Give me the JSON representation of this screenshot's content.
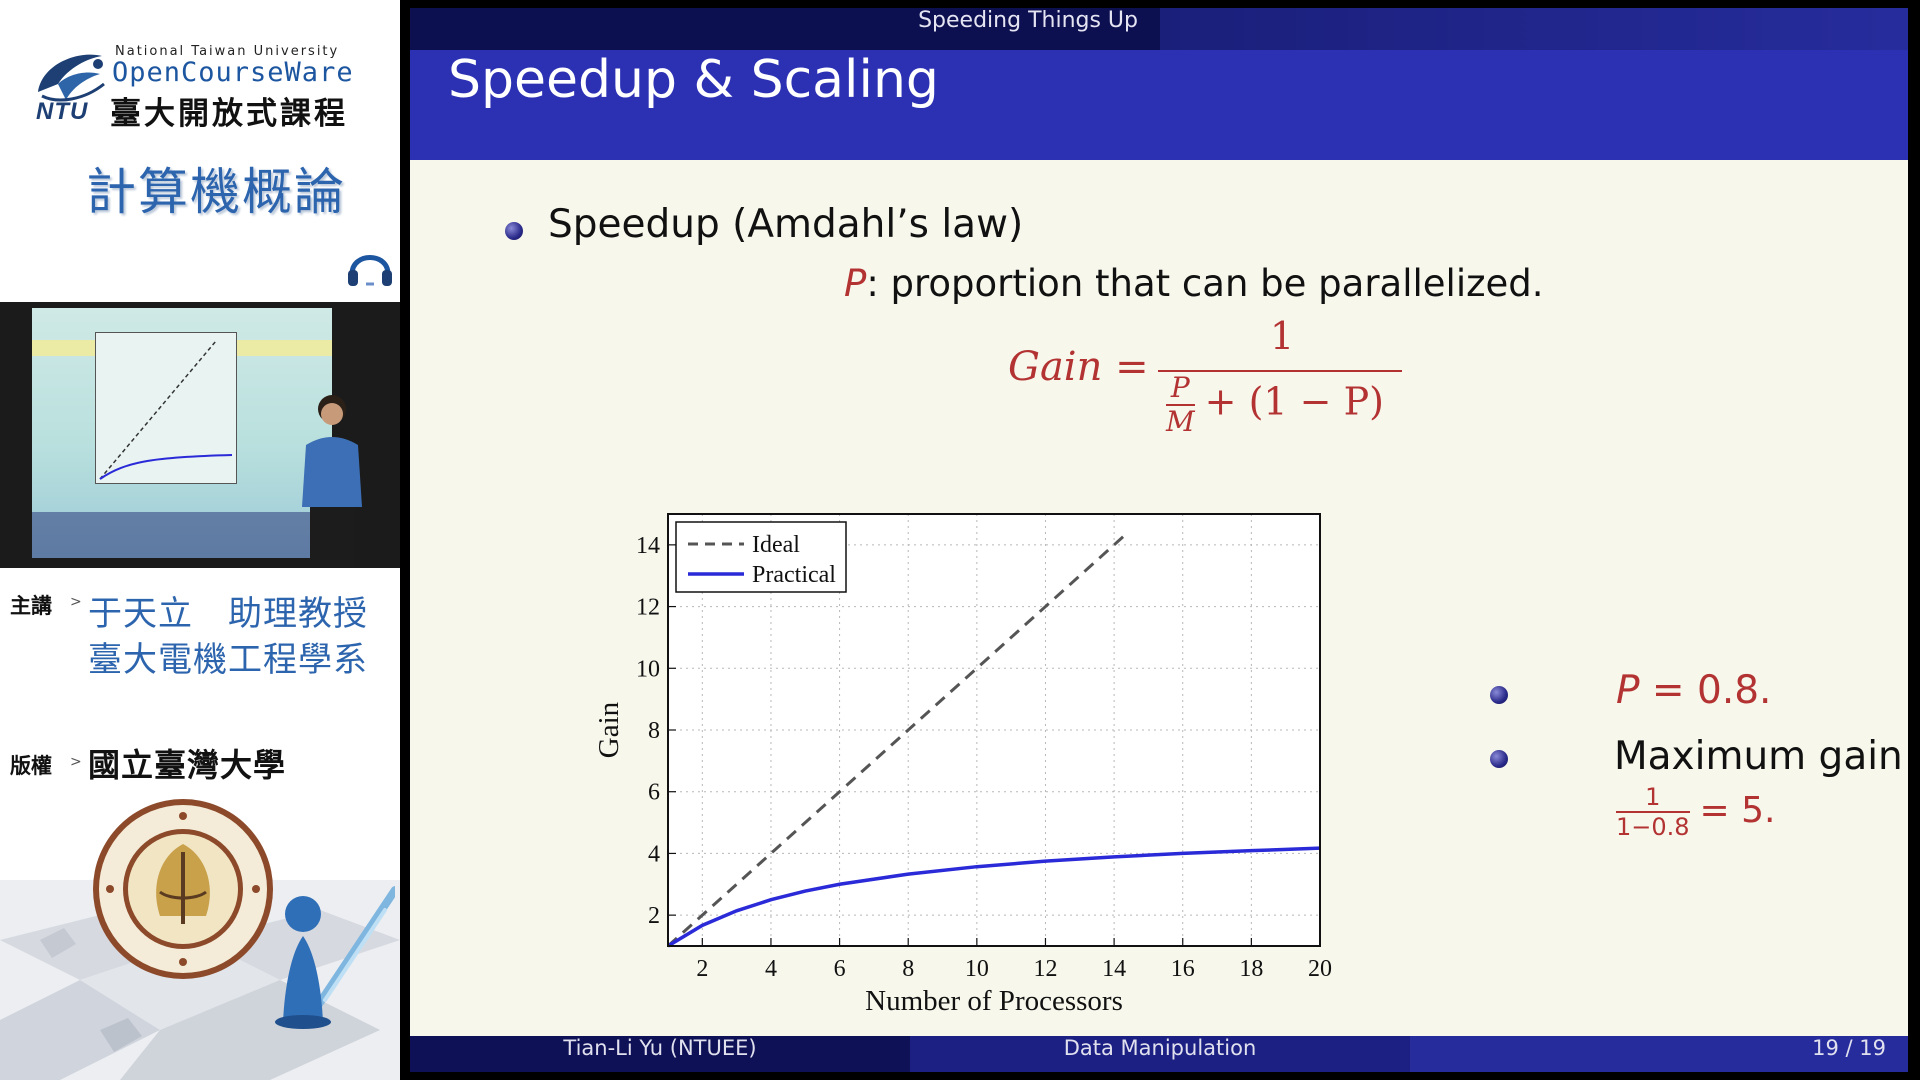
{
  "left_panel": {
    "ocw_logo_text": "NTU",
    "ocw_university": "National Taiwan University",
    "ocw_name": "OpenCourseWare",
    "ocw_chinese": "臺大開放式課程",
    "course_title": "計算機概論",
    "lecturer_label": "主講",
    "lecturer_name": "于天立　助理教授",
    "lecturer_dept": "臺大電機工程學系",
    "copyright_label": "版權",
    "copyright_holder": "國立臺灣大學",
    "arrow": ">"
  },
  "slide": {
    "section": "Speeding Things Up",
    "title": "Speedup & Scaling",
    "bullet1": "Speedup (Amdahl’s law)",
    "p_var": "P",
    "p_definition": ": proportion that can be parallelized.",
    "formula_lhs": "Gain =",
    "formula_num": "1",
    "formula_den_top": "P",
    "formula_den_bottom": "M",
    "formula_den_rest": "+ (1 − P)",
    "bullet_p_var": "P",
    "bullet_p_rest": " = 0.8.",
    "bullet_max": "Maximum gain is",
    "max_frac_top": "1",
    "max_frac_bottom": "1−0.8",
    "max_rest": "= 5.",
    "footer_author": "Tian-Li Yu  (NTUEE)",
    "footer_topic": "Data Manipulation",
    "footer_page": "19 / 19"
  },
  "colors": {
    "title_bar": "#2c31b4",
    "math_red": "#b33333",
    "practical_line": "#2a2ad8",
    "ideal_line": "#555555",
    "slide_bg": "#f7f7ec"
  },
  "chart_data": {
    "type": "line",
    "xlabel": "Number of Processors",
    "ylabel": "Gain",
    "xlim": [
      1,
      20
    ],
    "ylim": [
      1,
      15
    ],
    "xticks": [
      2,
      4,
      6,
      8,
      10,
      12,
      14,
      16,
      18,
      20
    ],
    "yticks": [
      2,
      4,
      6,
      8,
      10,
      12,
      14
    ],
    "grid": true,
    "legend": "top-left",
    "series": [
      {
        "name": "Ideal",
        "style": "dashed",
        "x": [
          1,
          2,
          4,
          6,
          8,
          10,
          12,
          14.3
        ],
        "y": [
          1,
          2,
          4,
          6,
          8,
          10,
          12,
          14.3
        ]
      },
      {
        "name": "Practical",
        "style": "solid",
        "x": [
          1,
          2,
          3,
          4,
          5,
          6,
          8,
          10,
          12,
          14,
          16,
          18,
          20
        ],
        "y": [
          1,
          1.67,
          2.14,
          2.5,
          2.78,
          3.0,
          3.33,
          3.57,
          3.75,
          3.89,
          4.0,
          4.09,
          4.17
        ]
      }
    ]
  }
}
